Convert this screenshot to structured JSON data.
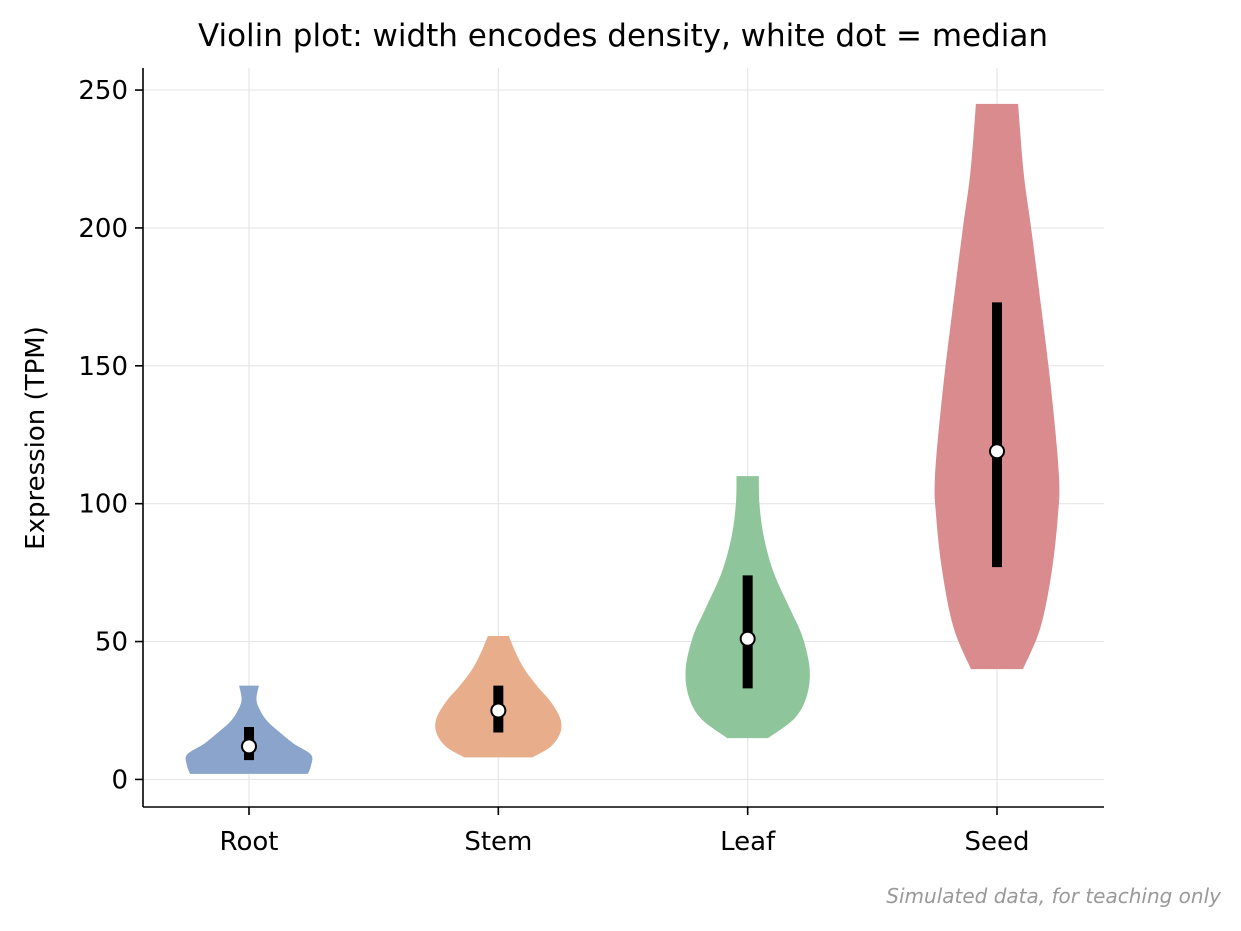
{
  "chart_data": {
    "type": "violin",
    "title": "Violin plot: width encodes density, white dot = median",
    "xlabel": "",
    "ylabel": "Expression (TPM)",
    "ylim": [
      -10,
      258
    ],
    "yticks": [
      0,
      50,
      100,
      150,
      200,
      250
    ],
    "grid": true,
    "categories": [
      "Root",
      "Stem",
      "Leaf",
      "Seed"
    ],
    "series": [
      {
        "category": "Root",
        "color": "#8aa4cc",
        "min": 2,
        "max": 34,
        "q1": 7,
        "median": 12,
        "q3": 19,
        "density": [
          [
            2,
            0.95
          ],
          [
            5,
            1.0
          ],
          [
            9,
            1.0
          ],
          [
            13,
            0.72
          ],
          [
            17,
            0.5
          ],
          [
            21,
            0.3
          ],
          [
            25,
            0.18
          ],
          [
            29,
            0.12
          ],
          [
            34,
            0.16
          ]
        ]
      },
      {
        "category": "Stem",
        "color": "#e8ae8c",
        "min": 8,
        "max": 52,
        "q1": 17,
        "median": 25,
        "q3": 34,
        "density": [
          [
            8,
            0.55
          ],
          [
            12,
            0.85
          ],
          [
            17,
            1.0
          ],
          [
            22,
            1.0
          ],
          [
            28,
            0.85
          ],
          [
            34,
            0.62
          ],
          [
            40,
            0.42
          ],
          [
            46,
            0.28
          ],
          [
            52,
            0.17
          ]
        ]
      },
      {
        "category": "Leaf",
        "color": "#8fc59a",
        "min": 15,
        "max": 110,
        "q1": 33,
        "median": 51,
        "q3": 74,
        "density": [
          [
            15,
            0.33
          ],
          [
            22,
            0.75
          ],
          [
            30,
            0.95
          ],
          [
            40,
            1.0
          ],
          [
            52,
            0.88
          ],
          [
            62,
            0.68
          ],
          [
            75,
            0.42
          ],
          [
            88,
            0.26
          ],
          [
            100,
            0.19
          ],
          [
            110,
            0.18
          ]
        ]
      },
      {
        "category": "Seed",
        "color": "#d98b8e",
        "min": 40,
        "max": 245,
        "q1": 77,
        "median": 119,
        "q3": 173,
        "density": [
          [
            40,
            0.42
          ],
          [
            55,
            0.7
          ],
          [
            75,
            0.88
          ],
          [
            95,
            0.98
          ],
          [
            110,
            1.0
          ],
          [
            140,
            0.88
          ],
          [
            170,
            0.72
          ],
          [
            200,
            0.55
          ],
          [
            220,
            0.43
          ],
          [
            245,
            0.34
          ]
        ]
      }
    ],
    "annotation": "Simulated data, for teaching only"
  }
}
